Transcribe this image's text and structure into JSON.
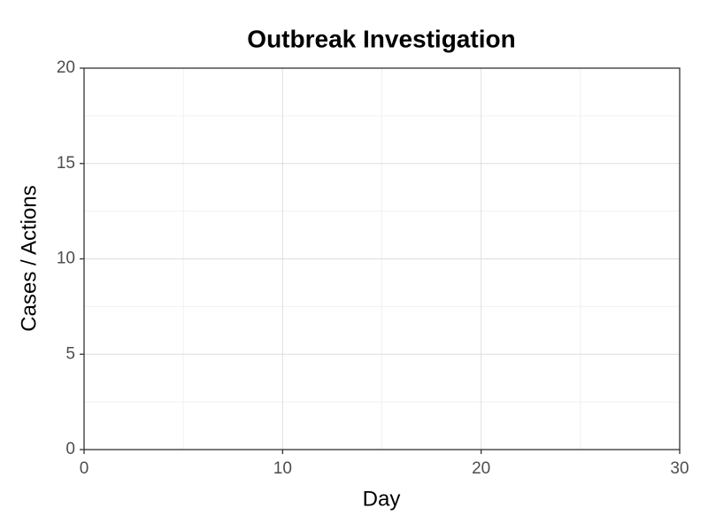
{
  "chart_data": {
    "type": "line",
    "title": "Outbreak Investigation",
    "x_label": "Day",
    "y_label": "Cases / Actions",
    "series": [],
    "xlim": [
      0,
      30
    ],
    "xticks": [
      0,
      10,
      20,
      30
    ],
    "xminor": [
      5,
      15,
      25
    ],
    "ylim": [
      0,
      20
    ],
    "yticks": [
      0,
      5,
      10,
      15,
      20
    ],
    "yminor": [
      2.5,
      7.5,
      12.5,
      17.5
    ],
    "grid": true
  }
}
